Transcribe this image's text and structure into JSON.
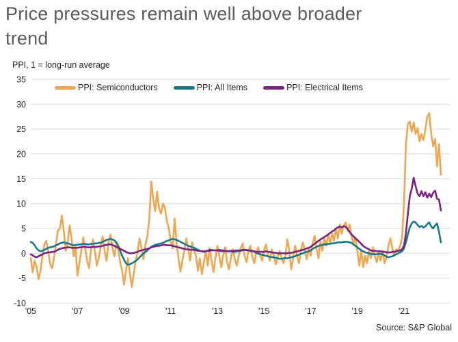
{
  "title": "Price pressures remain well above broader trend",
  "subtitle": "PPI, 1 = long-run average",
  "source": "Source: S&P Global",
  "chart_data": {
    "type": "line",
    "title": "Price pressures remain well above broader trend",
    "ylabel": "PPI, 1 = long-run average",
    "ylim": [
      -10,
      35
    ],
    "y_ticks": [
      35,
      30,
      25,
      20,
      15,
      10,
      5,
      0,
      -5,
      -10
    ],
    "x_tick_labels": [
      "'05",
      "'07",
      "'09",
      "'11",
      "'13",
      "'15",
      "'17",
      "'19",
      "'21"
    ],
    "x_tick_interval": 24,
    "x_start": "2005-01",
    "x_end": "2022-08",
    "points_per_year": 12,
    "grid": true,
    "grid_color": "#d9d9d9",
    "legend_position": "top",
    "series": [
      {
        "name": "PPI: Semiconductors",
        "color": "#F0A64E",
        "values": [
          -1.0,
          -3.8,
          -1.5,
          -2.8,
          -5.2,
          -3.5,
          -0.5,
          1.8,
          2.5,
          0.3,
          -2.2,
          -3.0,
          -0.8,
          2.0,
          4.6,
          5.0,
          7.6,
          4.5,
          0.5,
          2.2,
          5.6,
          3.0,
          -0.6,
          1.5,
          -4.5,
          -2.0,
          0.5,
          3.2,
          1.0,
          -1.5,
          -3.0,
          0.8,
          2.8,
          0.5,
          -2.5,
          -1.0,
          1.5,
          3.4,
          0.5,
          -1.5,
          2.2,
          3.8,
          1.2,
          -0.6,
          2.0,
          0.8,
          -1.8,
          -3.5,
          -6.3,
          -3.5,
          -1.0,
          -4.0,
          -6.8,
          -4.0,
          -1.5,
          0.5,
          3.0,
          1.0,
          -1.2,
          1.8,
          3.5,
          7.0,
          14.5,
          11.0,
          8.5,
          12.4,
          9.0,
          8.0,
          10.0,
          9.2,
          6.5,
          5.0,
          2.5,
          1.0,
          7.0,
          2.0,
          -1.0,
          -3.7,
          -1.5,
          0.5,
          3.0,
          1.0,
          -1.5,
          2.2,
          0.5,
          -0.5,
          -3.5,
          -1.0,
          -4.2,
          -2.0,
          0.5,
          -2.5,
          1.0,
          -1.5,
          -3.8,
          -1.0,
          1.5,
          -0.5,
          -2.8,
          -0.5,
          1.2,
          -1.8,
          -3.2,
          -0.8,
          0.8,
          -1.2,
          -2.5,
          -0.5,
          1.0,
          2.0,
          -0.5,
          -1.8,
          0.5,
          1.5,
          -0.8,
          -2.0,
          0.3,
          1.2,
          -0.5,
          -1.5,
          0.5,
          1.8,
          -0.3,
          -1.5,
          0.8,
          -0.5,
          -2.2,
          -0.8,
          0.5,
          -1.0,
          -2.0,
          -0.5,
          2.8,
          0.5,
          -3.2,
          -1.0,
          1.5,
          -0.5,
          -2.0,
          0.8,
          2.2,
          0.5,
          -1.2,
          1.0,
          -0.5,
          2.0,
          3.5,
          1.0,
          -1.0,
          2.5,
          0.5,
          3.0,
          1.5,
          3.8,
          2.0,
          4.0,
          2.5,
          5.0,
          3.0,
          5.8,
          4.0,
          5.5,
          6.2,
          4.5,
          5.8,
          3.5,
          2.0,
          3.2,
          0.5,
          -2.5,
          0.8,
          -2.8,
          -0.5,
          -2.0,
          0.5,
          -1.0,
          1.2,
          -0.5,
          -1.8,
          0.3,
          -1.5,
          0.5,
          -2.0,
          -0.8,
          1.5,
          3.0,
          1.0,
          -0.5,
          0.8,
          0.5,
          1.5,
          3.0,
          10.0,
          22.0,
          26.0,
          26.5,
          24.5,
          26.3,
          24.0,
          25.2,
          22.5,
          24.0,
          22.8,
          25.0,
          27.5,
          28.2,
          24.0,
          21.5,
          23.0,
          17.5,
          22.0,
          15.8
        ]
      },
      {
        "name": "PPI: All Items",
        "color": "#14798B",
        "values": [
          2.3,
          2.1,
          1.6,
          1.0,
          0.6,
          0.4,
          0.5,
          0.7,
          0.9,
          1.1,
          1.2,
          1.3,
          1.4,
          1.6,
          1.8,
          2.0,
          2.1,
          2.2,
          2.1,
          2.0,
          1.9,
          1.7,
          1.6,
          1.7,
          1.7,
          1.8,
          1.8,
          1.9,
          1.9,
          1.8,
          1.8,
          1.9,
          1.9,
          2.0,
          2.0,
          2.1,
          2.1,
          2.3,
          2.5,
          2.7,
          2.8,
          2.9,
          2.8,
          2.6,
          2.2,
          1.5,
          0.5,
          -0.5,
          -1.3,
          -2.0,
          -2.3,
          -2.2,
          -2.0,
          -1.8,
          -1.5,
          -1.2,
          -0.8,
          -0.4,
          0.0,
          0.3,
          0.6,
          1.0,
          1.3,
          1.5,
          1.7,
          1.8,
          1.9,
          2.0,
          2.1,
          2.3,
          2.5,
          2.6,
          2.8,
          2.9,
          2.8,
          2.7,
          2.5,
          2.3,
          2.1,
          1.9,
          1.7,
          1.5,
          1.4,
          1.2,
          1.1,
          0.9,
          0.7,
          0.5,
          0.4,
          0.3,
          0.4,
          0.5,
          0.7,
          0.7,
          0.6,
          0.6,
          0.6,
          0.5,
          0.4,
          0.4,
          0.5,
          0.5,
          0.4,
          0.4,
          0.3,
          0.3,
          0.4,
          0.4,
          0.5,
          0.6,
          0.7,
          0.7,
          0.6,
          0.6,
          0.5,
          0.3,
          0.1,
          -0.1,
          -0.2,
          -0.3,
          -0.4,
          -0.5,
          -0.6,
          -0.7,
          -0.8,
          -0.8,
          -0.9,
          -1.0,
          -1.1,
          -1.1,
          -1.0,
          -1.0,
          -1.0,
          -0.9,
          -0.8,
          -0.7,
          -0.6,
          -0.4,
          -0.3,
          -0.1,
          0.0,
          0.2,
          0.3,
          0.4,
          0.6,
          0.9,
          1.1,
          1.3,
          1.5,
          1.6,
          1.7,
          1.8,
          1.8,
          1.9,
          1.9,
          2.0,
          2.0,
          2.1,
          2.2,
          2.2,
          2.2,
          2.3,
          2.3,
          2.3,
          2.2,
          2.1,
          1.8,
          1.5,
          1.2,
          0.9,
          0.6,
          0.4,
          0.2,
          0.1,
          0.0,
          -0.1,
          -0.2,
          -0.2,
          -0.2,
          -0.1,
          -0.1,
          -0.2,
          -0.4,
          -0.7,
          -0.8,
          -0.7,
          -0.6,
          -0.4,
          -0.2,
          0.0,
          0.2,
          0.4,
          1.0,
          2.2,
          3.8,
          5.2,
          6.0,
          6.4,
          6.2,
          5.7,
          5.3,
          5.5,
          5.2,
          5.4,
          5.9,
          6.2,
          5.4,
          5.0,
          5.6,
          6.0,
          4.3,
          2.2
        ]
      },
      {
        "name": "PPI: Electrical Items",
        "color": "#7A2182",
        "values": [
          -0.2,
          -0.4,
          -0.7,
          -0.8,
          -0.6,
          -0.4,
          -0.2,
          0.0,
          0.1,
          0.2,
          0.2,
          0.3,
          0.3,
          0.5,
          0.7,
          0.9,
          1.0,
          1.1,
          1.1,
          1.2,
          1.2,
          1.1,
          1.1,
          1.1,
          1.1,
          1.2,
          1.2,
          1.3,
          1.3,
          1.2,
          1.2,
          1.2,
          1.3,
          1.3,
          1.3,
          1.4,
          1.4,
          1.5,
          1.6,
          1.7,
          1.8,
          1.8,
          1.7,
          1.5,
          1.3,
          1.1,
          0.9,
          0.7,
          0.5,
          0.3,
          0.1,
          0.0,
          0.0,
          0.1,
          0.2,
          0.3,
          0.5,
          0.6,
          0.7,
          0.8,
          0.9,
          1.0,
          1.2,
          1.3,
          1.4,
          1.5,
          1.5,
          1.6,
          1.7,
          1.7,
          1.6,
          1.6,
          1.6,
          1.5,
          1.4,
          1.3,
          1.2,
          1.1,
          1.0,
          0.9,
          0.8,
          0.8,
          0.7,
          0.7,
          0.7,
          0.6,
          0.5,
          0.5,
          0.4,
          0.4,
          0.4,
          0.5,
          0.5,
          0.6,
          0.6,
          0.6,
          0.6,
          0.7,
          0.6,
          0.6,
          0.5,
          0.4,
          0.4,
          0.5,
          0.5,
          0.5,
          0.6,
          0.6,
          0.6,
          0.7,
          0.7,
          0.6,
          0.6,
          0.5,
          0.4,
          0.4,
          0.3,
          0.3,
          0.3,
          0.3,
          0.3,
          0.4,
          0.3,
          0.3,
          0.2,
          0.1,
          0.1,
          0.0,
          0.0,
          0.0,
          0.0,
          0.0,
          0.0,
          0.1,
          0.1,
          0.2,
          0.3,
          0.4,
          0.5,
          0.6,
          0.7,
          0.8,
          1.0,
          1.1,
          1.3,
          1.6,
          1.9,
          2.2,
          2.5,
          2.8,
          3.0,
          3.3,
          3.5,
          3.8,
          4.1,
          4.4,
          4.6,
          5.0,
          5.2,
          5.4,
          5.2,
          5.5,
          5.3,
          4.9,
          4.3,
          3.8,
          3.4,
          3.0,
          2.7,
          2.3,
          1.9,
          1.5,
          1.2,
          1.0,
          0.8,
          0.6,
          0.5,
          0.5,
          0.4,
          0.4,
          0.4,
          0.3,
          0.3,
          0.2,
          0.2,
          0.2,
          0.3,
          0.3,
          0.4,
          0.5,
          0.6,
          0.8,
          1.5,
          4.0,
          8.0,
          11.5,
          13.0,
          15.2,
          13.5,
          12.0,
          11.5,
          12.5,
          11.5,
          12.3,
          11.2,
          12.0,
          11.3,
          12.2,
          12.6,
          11.0,
          10.8,
          8.6
        ]
      }
    ]
  }
}
